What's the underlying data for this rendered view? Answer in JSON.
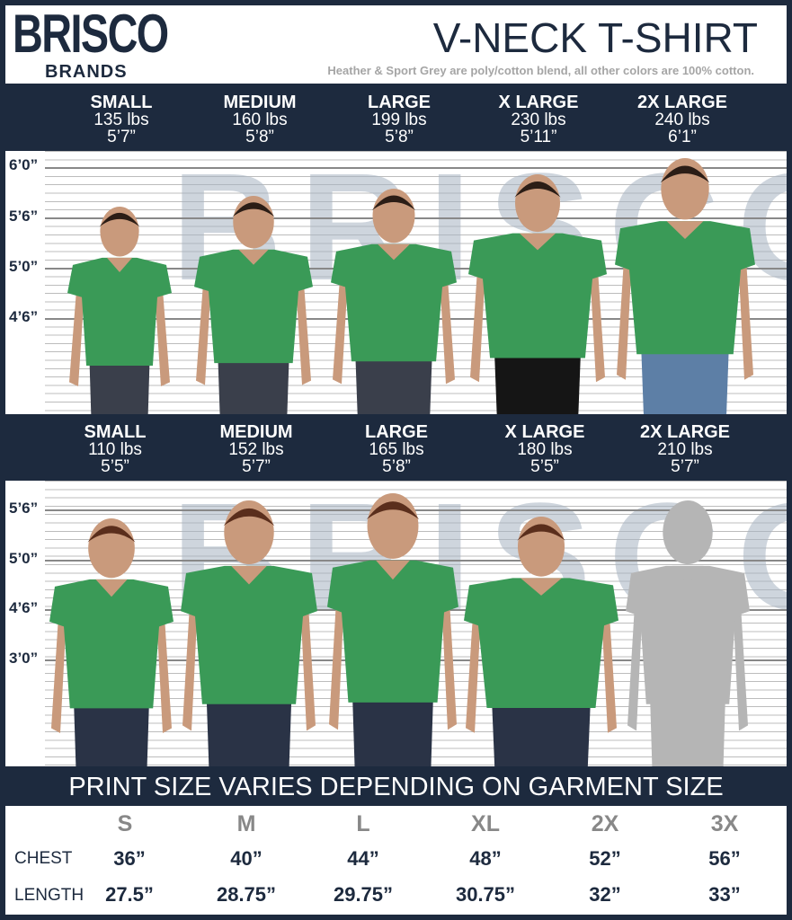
{
  "brand": {
    "name": "BRISCO",
    "sub": "BRANDS"
  },
  "header": {
    "title": "V-NECK T-SHIRT",
    "subtitle": "Heather & Sport Grey are poly/cotton blend, all other colors are 100% cotton."
  },
  "men": {
    "sizes": [
      {
        "name": "SMALL",
        "weight": "135 lbs",
        "height": "5’7”"
      },
      {
        "name": "MEDIUM",
        "weight": "160 lbs",
        "height": "5’8”"
      },
      {
        "name": "LARGE",
        "weight": "199 lbs",
        "height": "5’8”"
      },
      {
        "name": "X LARGE",
        "weight": "230 lbs",
        "height": "5’11”"
      },
      {
        "name": "2X LARGE",
        "weight": "240 lbs",
        "height": "6’1”"
      }
    ],
    "height_marks": [
      "6’0”",
      "5’6”",
      "5’0”",
      "4’6”"
    ]
  },
  "women": {
    "sizes": [
      {
        "name": "SMALL",
        "weight": "110 lbs",
        "height": "5’5”"
      },
      {
        "name": "MEDIUM",
        "weight": "152 lbs",
        "height": "5’7”"
      },
      {
        "name": "LARGE",
        "weight": "165 lbs",
        "height": "5’8”"
      },
      {
        "name": "X LARGE",
        "weight": "180 lbs",
        "height": "5’5”"
      },
      {
        "name": "2X LARGE",
        "weight": "210 lbs",
        "height": "5’7”"
      }
    ],
    "height_marks": [
      "5’6”",
      "5’0”",
      "4’6”",
      "3’0”"
    ]
  },
  "banner": "PRINT SIZE VARIES DEPENDING ON GARMENT SIZE",
  "table": {
    "columns": [
      "S",
      "M",
      "L",
      "XL",
      "2X",
      "3X"
    ],
    "rows": [
      {
        "label": "CHEST",
        "values": [
          "36”",
          "40”",
          "44”",
          "48”",
          "52”",
          "56”"
        ]
      },
      {
        "label": "LENGTH",
        "values": [
          "27.5”",
          "28.75”",
          "29.75”",
          "30.75”",
          "32”",
          "33”"
        ]
      }
    ]
  },
  "colors": {
    "navy": "#1d2a3e",
    "shirt_green": "#3a9a57",
    "watermark": "#a7b4c3"
  }
}
